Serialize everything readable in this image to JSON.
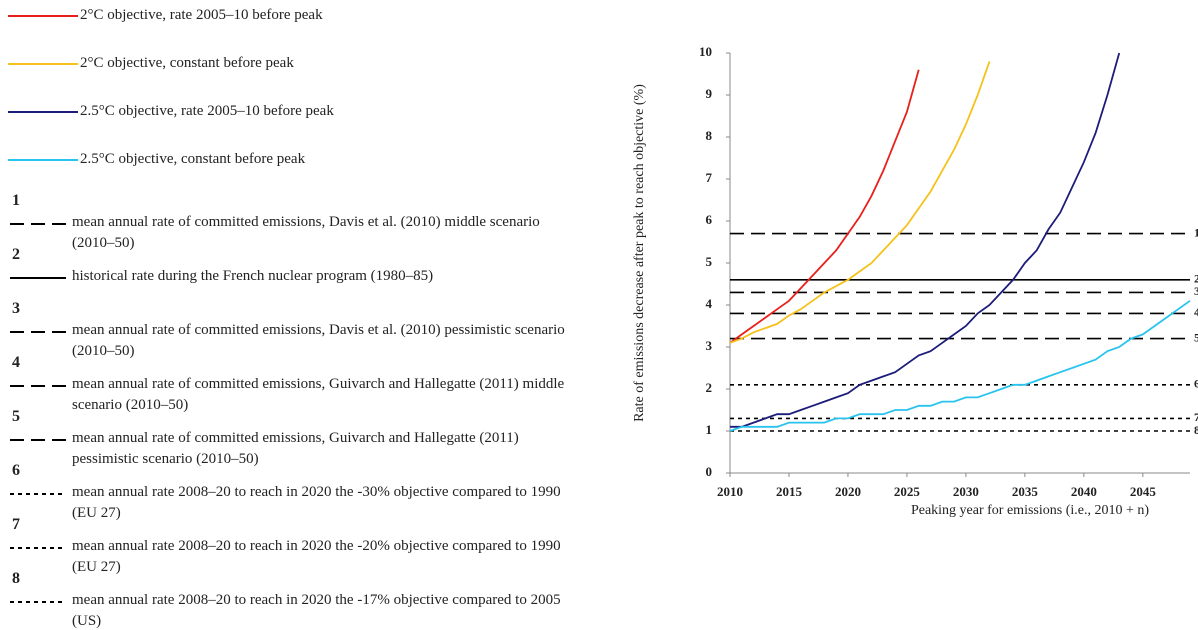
{
  "chart_data": {
    "type": "line",
    "x_label": "Peaking year for emissions (i.e., 2010 + n)",
    "y_label": "Rate of emissions decrease after peak to reach objective (%)",
    "x": [
      2010,
      2011,
      2012,
      2013,
      2014,
      2015,
      2016,
      2017,
      2018,
      2019,
      2020,
      2021,
      2022,
      2023,
      2024,
      2025,
      2026,
      2027,
      2028,
      2029,
      2030,
      2031,
      2032,
      2033,
      2034,
      2035,
      2036,
      2037,
      2038,
      2039,
      2040,
      2041,
      2042,
      2043,
      2044,
      2045,
      2046,
      2047,
      2048,
      2049
    ],
    "xlim": [
      2010,
      2049
    ],
    "xticks": [
      2010,
      2015,
      2020,
      2025,
      2030,
      2035,
      2040,
      2045
    ],
    "ylim": [
      0,
      10
    ],
    "yticks": [
      0,
      1,
      2,
      3,
      4,
      5,
      6,
      7,
      8,
      9,
      10
    ],
    "series": [
      {
        "name": "2°C objective, rate 2005–10 before peak",
        "color": "#e8201c",
        "values": [
          3.1,
          3.3,
          3.5,
          3.7,
          3.9,
          4.1,
          4.4,
          4.7,
          5.0,
          5.3,
          5.7,
          6.1,
          6.6,
          7.2,
          7.9,
          8.6,
          9.6,
          null,
          null,
          null,
          null,
          null,
          null,
          null,
          null,
          null,
          null,
          null,
          null,
          null,
          null,
          null,
          null,
          null,
          null,
          null,
          null,
          null,
          null,
          null
        ]
      },
      {
        "name": "2°C objective, constant before peak",
        "color": "#f5c21b",
        "values": [
          3.1,
          3.2,
          3.35,
          3.45,
          3.55,
          3.75,
          3.9,
          4.1,
          4.3,
          4.45,
          4.6,
          4.8,
          5.0,
          5.3,
          5.6,
          5.9,
          6.3,
          6.7,
          7.2,
          7.7,
          8.3,
          9.0,
          9.8,
          null,
          null,
          null,
          null,
          null,
          null,
          null,
          null,
          null,
          null,
          null,
          null,
          null,
          null,
          null,
          null,
          null
        ]
      },
      {
        "name": "2.5°C objective, rate 2005–10 before peak",
        "color": "#1c1c7a",
        "values": [
          1.1,
          1.1,
          1.2,
          1.3,
          1.4,
          1.4,
          1.5,
          1.6,
          1.7,
          1.8,
          1.9,
          2.1,
          2.2,
          2.3,
          2.4,
          2.6,
          2.8,
          2.9,
          3.1,
          3.3,
          3.5,
          3.8,
          4.0,
          4.3,
          4.6,
          5.0,
          5.3,
          5.8,
          6.2,
          6.8,
          7.4,
          8.1,
          9.0,
          10.0,
          null,
          null,
          null,
          null,
          null,
          null
        ]
      },
      {
        "name": "2.5°C objective, constant before peak",
        "color": "#29c3ef",
        "values": [
          1.0,
          1.1,
          1.1,
          1.1,
          1.1,
          1.2,
          1.2,
          1.2,
          1.2,
          1.3,
          1.3,
          1.4,
          1.4,
          1.4,
          1.5,
          1.5,
          1.6,
          1.6,
          1.7,
          1.7,
          1.8,
          1.8,
          1.9,
          2.0,
          2.1,
          2.1,
          2.2,
          2.3,
          2.4,
          2.5,
          2.6,
          2.7,
          2.9,
          3.0,
          3.2,
          3.3,
          3.5,
          3.7,
          3.9,
          4.1
        ]
      }
    ],
    "reference_lines": [
      {
        "label": "1",
        "value": 5.7,
        "dash": "long",
        "color": "#000000",
        "description": "mean annual rate of committed emissions, Davis et al. (2010) middle scenario (2010–50)"
      },
      {
        "label": "2",
        "value": 4.6,
        "dash": "solid",
        "color": "#000000",
        "description": "historical rate during the French nuclear program (1980–85)"
      },
      {
        "label": "3",
        "value": 4.3,
        "dash": "long",
        "color": "#000000",
        "description": "mean annual rate of committed emissions, Davis et al. (2010) pessimistic scenario (2010–50)"
      },
      {
        "label": "4",
        "value": 3.8,
        "dash": "long",
        "color": "#000000",
        "description": "mean annual rate of committed emissions, Guivarch and Hallegatte (2011) middle scenario (2010–50)"
      },
      {
        "label": "5",
        "value": 3.2,
        "dash": "long",
        "color": "#000000",
        "description": "mean annual rate of committed emissions, Guivarch and Hallegatte (2011) pessimistic scenario (2010–50)"
      },
      {
        "label": "6",
        "value": 2.1,
        "dash": "short",
        "color": "#000000",
        "description": "mean annual rate 2008–20 to reach in 2020 the -30% objective compared to 1990 (EU 27)"
      },
      {
        "label": "7",
        "value": 1.3,
        "dash": "short",
        "color": "#000000",
        "description": "mean annual rate 2008–20 to reach in 2020 the -20% objective compared to 1990 (EU 27)"
      },
      {
        "label": "8",
        "value": 1.0,
        "dash": "short",
        "color": "#000000",
        "description": "mean annual rate 2008–20 to reach in 2020 the -17% objective compared to 2005 (US)"
      }
    ]
  }
}
